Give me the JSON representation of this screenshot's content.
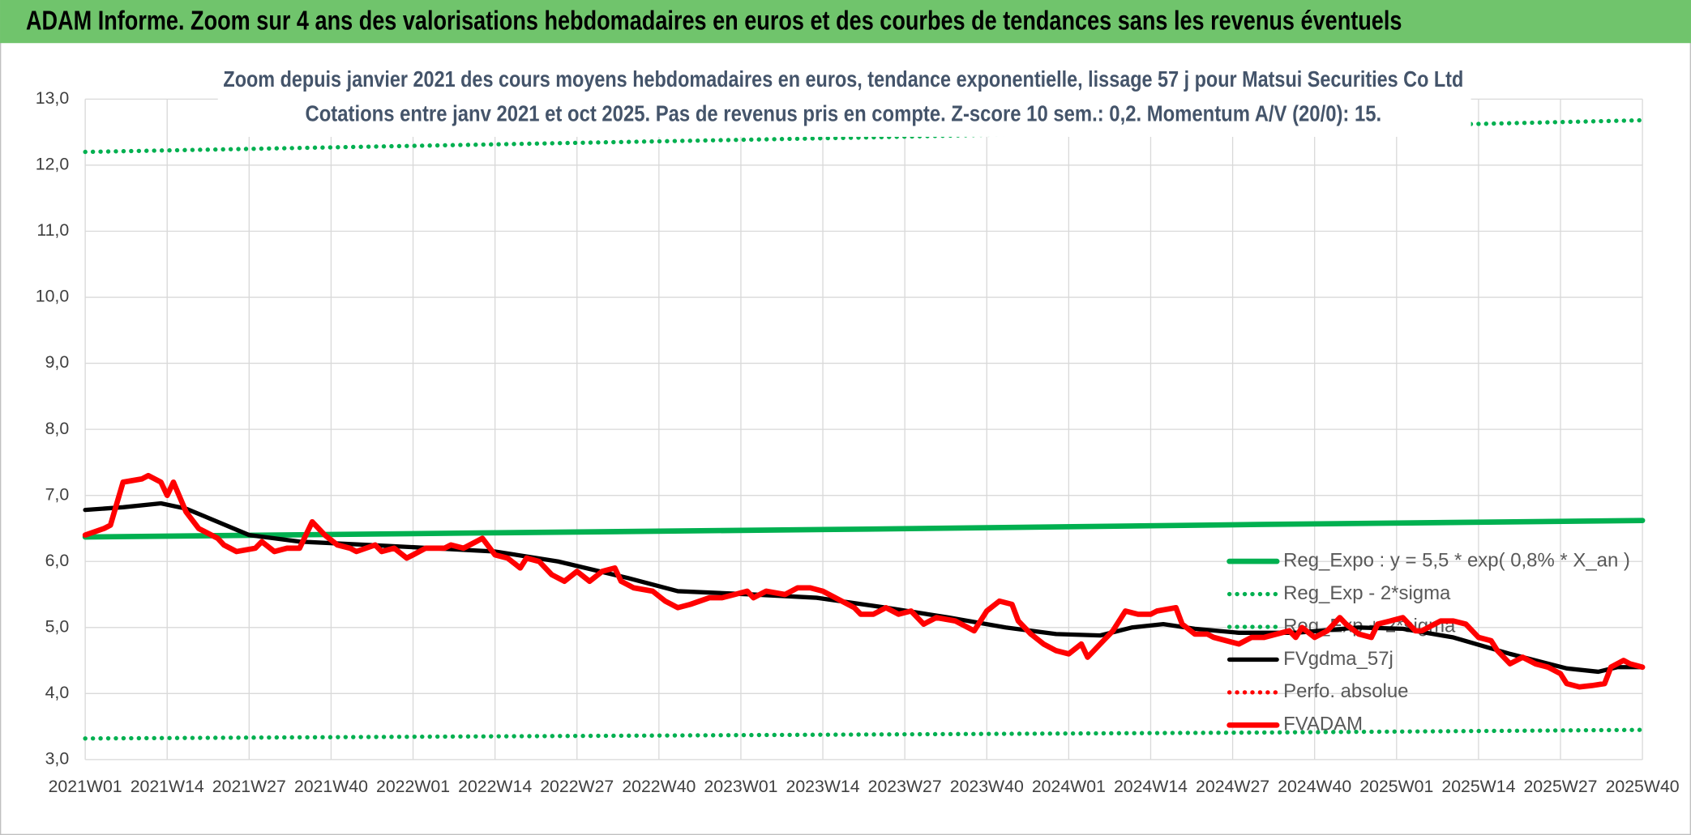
{
  "header": {
    "title": "ADAM Informe. Zoom sur 4 ans des valorisations hebdomadaires en euros et des courbes de tendances sans les revenus éventuels"
  },
  "chart_data": {
    "type": "line",
    "title": "Zoom depuis janvier 2021 des cours moyens hebdomadaires en euros, tendance exponentielle, lissage 57 j pour Matsui Securities Co Ltd",
    "subtitle": "Cotations entre janv 2021 et oct 2025. Pas de revenus pris en compte. Z-score 10 sem.: 0,2. Momentum A/V (20/0): 15.",
    "xlim": [
      0,
      247
    ],
    "ylim": [
      3,
      13
    ],
    "grid": true,
    "xticks": [
      {
        "value": 0,
        "label": "2021W01"
      },
      {
        "value": 13,
        "label": "2021W14"
      },
      {
        "value": 26,
        "label": "2021W27"
      },
      {
        "value": 39,
        "label": "2021W40"
      },
      {
        "value": 52,
        "label": "2022W01"
      },
      {
        "value": 65,
        "label": "2022W14"
      },
      {
        "value": 78,
        "label": "2022W27"
      },
      {
        "value": 91,
        "label": "2022W40"
      },
      {
        "value": 104,
        "label": "2023W01"
      },
      {
        "value": 117,
        "label": "2023W14"
      },
      {
        "value": 130,
        "label": "2023W27"
      },
      {
        "value": 143,
        "label": "2023W40"
      },
      {
        "value": 156,
        "label": "2024W01"
      },
      {
        "value": 169,
        "label": "2024W14"
      },
      {
        "value": 182,
        "label": "2024W27"
      },
      {
        "value": 195,
        "label": "2024W40"
      },
      {
        "value": 208,
        "label": "2025W01"
      },
      {
        "value": 221,
        "label": "2025W14"
      },
      {
        "value": 234,
        "label": "2025W27"
      },
      {
        "value": 247,
        "label": "2025W40"
      }
    ],
    "yticks": [
      {
        "value": 3,
        "label": "3,0"
      },
      {
        "value": 4,
        "label": "4,0"
      },
      {
        "value": 5,
        "label": "5,0"
      },
      {
        "value": 6,
        "label": "6,0"
      },
      {
        "value": 7,
        "label": "7,0"
      },
      {
        "value": 8,
        "label": "8,0"
      },
      {
        "value": 9,
        "label": "9,0"
      },
      {
        "value": 10,
        "label": "10,0"
      },
      {
        "value": 11,
        "label": "11,0"
      },
      {
        "value": 12,
        "label": "12,0"
      },
      {
        "value": 13,
        "label": "13,0"
      }
    ],
    "series": [
      {
        "name": "Reg_Expo : y = 5,5 * exp( 0,8% *  X_an )",
        "color": "#00b050",
        "style": "solid",
        "width": 5,
        "x": [
          0,
          62,
          124,
          186,
          247
        ],
        "values": [
          6.37,
          6.43,
          6.49,
          6.56,
          6.62
        ]
      },
      {
        "name": "Reg_Exp - 2*sigma",
        "color": "#00b050",
        "style": "dotted",
        "width": 4,
        "x": [
          0,
          62,
          124,
          186,
          247
        ],
        "values": [
          3.32,
          3.35,
          3.38,
          3.41,
          3.45
        ]
      },
      {
        "name": "Reg_Exp + 2*sigma",
        "color": "#00b050",
        "style": "dotted",
        "width": 4,
        "x": [
          0,
          62,
          124,
          186,
          247
        ],
        "values": [
          12.2,
          12.31,
          12.42,
          12.55,
          12.68
        ]
      },
      {
        "name": "FVgdma_57j",
        "color": "#000000",
        "style": "solid",
        "width": 4,
        "x": [
          0,
          6,
          12,
          16,
          21,
          26,
          34,
          45,
          55,
          65,
          75,
          86,
          94,
          106,
          116,
          127,
          137,
          146,
          154,
          161,
          166,
          171,
          176,
          183,
          192,
          202,
          209,
          217,
          226,
          235,
          240,
          243,
          247
        ],
        "values": [
          6.78,
          6.82,
          6.88,
          6.8,
          6.6,
          6.4,
          6.3,
          6.25,
          6.2,
          6.15,
          6.0,
          5.75,
          5.55,
          5.5,
          5.45,
          5.3,
          5.15,
          5.0,
          4.9,
          4.88,
          5.0,
          5.05,
          4.98,
          4.92,
          4.92,
          5.0,
          4.98,
          4.85,
          4.6,
          4.38,
          4.33,
          4.4,
          4.4
        ]
      },
      {
        "name": "Perfo. absolue",
        "color": "#ff0000",
        "style": "dotted",
        "width": 4,
        "x": [],
        "values": []
      },
      {
        "name": "FVADAM",
        "color": "#ff0000",
        "style": "solid",
        "width": 5,
        "x": [
          0,
          3,
          4,
          6,
          9,
          10,
          12,
          13,
          14,
          16,
          18,
          21,
          22,
          24,
          27,
          28,
          30,
          32,
          34,
          36,
          38,
          40,
          42,
          43,
          46,
          47,
          49,
          51,
          52,
          54,
          57,
          58,
          60,
          62,
          63,
          65,
          67,
          69,
          70,
          72,
          74,
          76,
          78,
          80,
          82,
          84,
          85,
          87,
          90,
          92,
          94,
          96,
          99,
          101,
          103,
          105,
          106,
          108,
          111,
          113,
          115,
          117,
          120,
          122,
          123,
          125,
          127,
          129,
          131,
          133,
          135,
          138,
          140,
          141,
          143,
          145,
          147,
          148,
          150,
          152,
          154,
          156,
          158,
          159,
          161,
          163,
          165,
          167,
          169,
          170,
          173,
          174,
          176,
          178,
          179,
          181,
          183,
          185,
          187,
          189,
          191,
          192,
          193,
          195,
          197,
          199,
          200,
          202,
          204,
          205,
          207,
          209,
          211,
          212,
          215,
          217,
          219,
          221,
          223,
          224,
          226,
          228,
          230,
          232,
          234,
          235,
          237,
          239,
          241,
          242,
          244,
          245,
          247
        ],
        "values": [
          6.4,
          6.5,
          6.55,
          7.2,
          7.25,
          7.3,
          7.2,
          7.0,
          7.2,
          6.75,
          6.5,
          6.35,
          6.25,
          6.15,
          6.2,
          6.3,
          6.15,
          6.2,
          6.2,
          6.6,
          6.4,
          6.25,
          6.2,
          6.15,
          6.25,
          6.15,
          6.2,
          6.05,
          6.1,
          6.2,
          6.2,
          6.25,
          6.2,
          6.3,
          6.35,
          6.1,
          6.05,
          5.9,
          6.05,
          6.0,
          5.8,
          5.7,
          5.85,
          5.7,
          5.85,
          5.9,
          5.7,
          5.6,
          5.55,
          5.4,
          5.3,
          5.35,
          5.45,
          5.45,
          5.5,
          5.55,
          5.45,
          5.55,
          5.5,
          5.6,
          5.6,
          5.55,
          5.4,
          5.3,
          5.2,
          5.2,
          5.3,
          5.2,
          5.25,
          5.05,
          5.15,
          5.1,
          5.0,
          4.95,
          5.25,
          5.4,
          5.35,
          5.1,
          4.9,
          4.75,
          4.65,
          4.6,
          4.75,
          4.55,
          4.75,
          4.95,
          5.25,
          5.2,
          5.2,
          5.25,
          5.3,
          5.05,
          4.9,
          4.9,
          4.85,
          4.8,
          4.75,
          4.85,
          4.85,
          4.9,
          4.95,
          4.85,
          5.0,
          4.85,
          4.95,
          5.15,
          5.05,
          4.9,
          4.85,
          5.05,
          5.1,
          5.15,
          4.95,
          4.95,
          5.1,
          5.1,
          5.05,
          4.85,
          4.8,
          4.65,
          4.45,
          4.55,
          4.45,
          4.4,
          4.3,
          4.15,
          4.1,
          4.12,
          4.15,
          4.4,
          4.5,
          4.45,
          4.4
        ]
      }
    ]
  }
}
